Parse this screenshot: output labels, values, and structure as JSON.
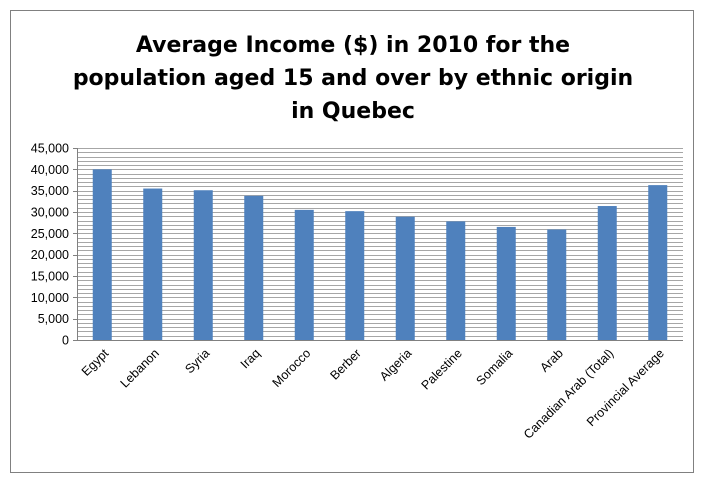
{
  "chart_data": {
    "type": "bar",
    "title_lines": [
      "Average Income ($) in 2010 for the",
      "population aged 15 and over by ethnic origin",
      "in Quebec"
    ],
    "xlabel": "",
    "ylabel": "",
    "categories": [
      "Egypt",
      "Lebanon",
      "Syria",
      "Iraq",
      "Morocco",
      "Berber",
      "Algeria",
      "Palestine",
      "Somalia",
      "Arab",
      "Canadian Arab (Total)",
      "Provincial Average"
    ],
    "values": [
      40000,
      35500,
      35100,
      33800,
      30500,
      30200,
      28900,
      27800,
      26500,
      25900,
      31400,
      36300
    ],
    "ylim": [
      0,
      45000
    ],
    "yticks": [
      0,
      5000,
      10000,
      15000,
      20000,
      25000,
      30000,
      35000,
      40000,
      45000
    ],
    "ytick_labels": [
      "0",
      "5,000",
      "10,000",
      "15,000",
      "20,000",
      "25,000",
      "30,000",
      "35,000",
      "40,000",
      "45,000"
    ],
    "minor_gridline_step": 1000,
    "grid": true,
    "bar_color": "#4f81bd",
    "grid_color": "#a6a6a6",
    "legend": "none"
  }
}
